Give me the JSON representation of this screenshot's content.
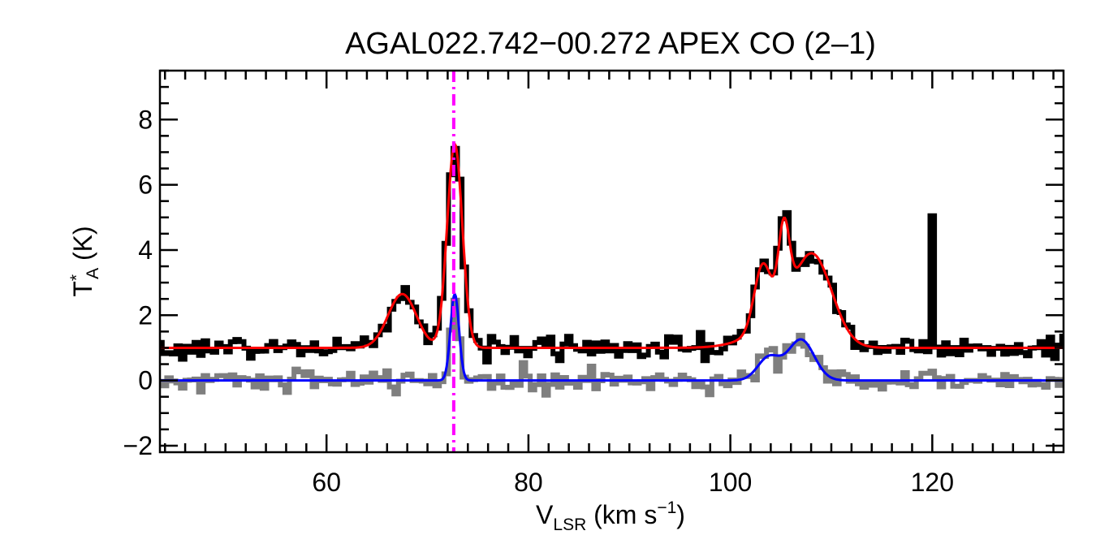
{
  "chart_data": {
    "type": "line",
    "title": "AGAL022.742−00.272  APEX CO (2–1)",
    "xlabel": {
      "main": "V",
      "sub": "LSR",
      "unit": " (km s",
      "sup": "−1",
      "close": ")"
    },
    "ylabel": {
      "main": "T",
      "sup": "*",
      "sub": "A",
      "unit": " (K)"
    },
    "xlim": [
      43.5,
      133
    ],
    "ylim": [
      -2.2,
      9.5
    ],
    "xticks": [
      60,
      80,
      100,
      120
    ],
    "yticks": [
      -2,
      0,
      2,
      4,
      6,
      8
    ],
    "xticklabels": [
      "60",
      "80",
      "100",
      "120"
    ],
    "yticklabels": [
      "−2",
      "0",
      "2",
      "4",
      "6",
      "8"
    ],
    "x_minor_step": 2,
    "y_minor_step": 0.5,
    "grid": false,
    "legend": "none",
    "vline": {
      "x": 72.6,
      "color": "#ff00ff",
      "style": "dash-dot"
    },
    "observed_offset": 1.0,
    "fit_components": {
      "observed": [
        {
          "amp": 1.65,
          "center": 67.5,
          "sigma": 1.4
        },
        {
          "amp": 6.25,
          "center": 72.7,
          "sigma": 0.75
        },
        {
          "amp": 2.0,
          "center": 103.2,
          "sigma": 0.85
        },
        {
          "amp": 2.5,
          "center": 105.3,
          "sigma": 0.55
        },
        {
          "amp": 2.55,
          "center": 108.2,
          "sigma": 1.9
        },
        {
          "amp": 0.6,
          "center": 105.0,
          "sigma": 3.0
        }
      ],
      "second": [
        {
          "amp": 2.65,
          "center": 72.7,
          "sigma": 0.42
        },
        {
          "amp": 0.7,
          "center": 103.8,
          "sigma": 1.1
        },
        {
          "amp": 1.25,
          "center": 107.0,
          "sigma": 1.3
        }
      ]
    },
    "noise": {
      "observed_rms": 0.18,
      "second_rms": 0.17,
      "channel_width": 0.45
    },
    "spikes": [
      {
        "x": 120.1,
        "value": 5.05
      }
    ],
    "series": [
      {
        "name": "",
        "role": "observed_spectrum",
        "color": "#000000",
        "style": "histogram",
        "baseline": 1.0
      },
      {
        "name": "",
        "role": "observed_fit",
        "color": "#ff0000",
        "style": "line"
      },
      {
        "name": "",
        "role": "second_spectrum",
        "color": "#7f7f7f",
        "style": "histogram",
        "baseline": 0.0
      },
      {
        "name": "",
        "role": "second_fit",
        "color": "#0000ff",
        "style": "line"
      }
    ]
  }
}
